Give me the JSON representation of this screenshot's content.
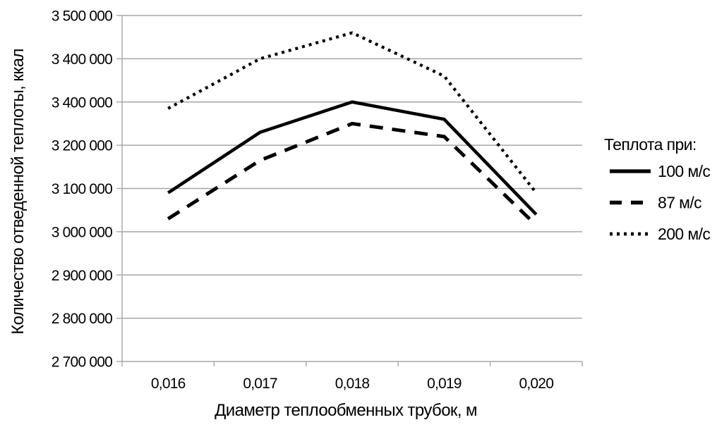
{
  "chart_data": {
    "type": "line",
    "title": "",
    "xlabel": "Диаметр теплообменных трубок, м",
    "ylabel": "Количество отведенной теплоты, ккал",
    "x_categories": [
      "0,016",
      "0,017",
      "0,018",
      "0,019",
      "0,020"
    ],
    "x_values": [
      0.016,
      0.017,
      0.018,
      0.019,
      0.02
    ],
    "y_tick_labels_top_to_bottom": [
      "3 500 000",
      "3 400 000",
      "3 400 000",
      "3 200 000",
      "3 100 000",
      "3 000 000",
      "2 900 000",
      "2 800 000",
      "2 700 000"
    ],
    "y_axis_note": "Tick labels reproduced verbatim from source: second and third labels both read '3 400 000' (apparent typo for '3 300 000'); gridlines are evenly spaced on a linear 2 700 000 - 3 500 000 scale",
    "ylim": [
      2700000,
      3500000
    ],
    "grid": "horizontal",
    "legend_position": "right",
    "legend_title": "Теплота при:",
    "series": [
      {
        "name": "100 м/с",
        "line_style": "solid",
        "color": "#000000",
        "values": [
          3090000,
          3230000,
          3300000,
          3260000,
          3040000
        ]
      },
      {
        "name": "87 м/с",
        "line_style": "dashed",
        "color": "#000000",
        "values": [
          3030000,
          3165000,
          3250000,
          3220000,
          3015000
        ]
      },
      {
        "name": "200 м/с",
        "line_style": "dotted",
        "color": "#000000",
        "values": [
          3285000,
          3400000,
          3460000,
          3360000,
          3090000
        ]
      }
    ],
    "colors": {
      "series": "#000000",
      "grid": "#a6a6a6",
      "axis": "#a6a6a6",
      "text": "#000000",
      "background": "#ffffff"
    }
  }
}
